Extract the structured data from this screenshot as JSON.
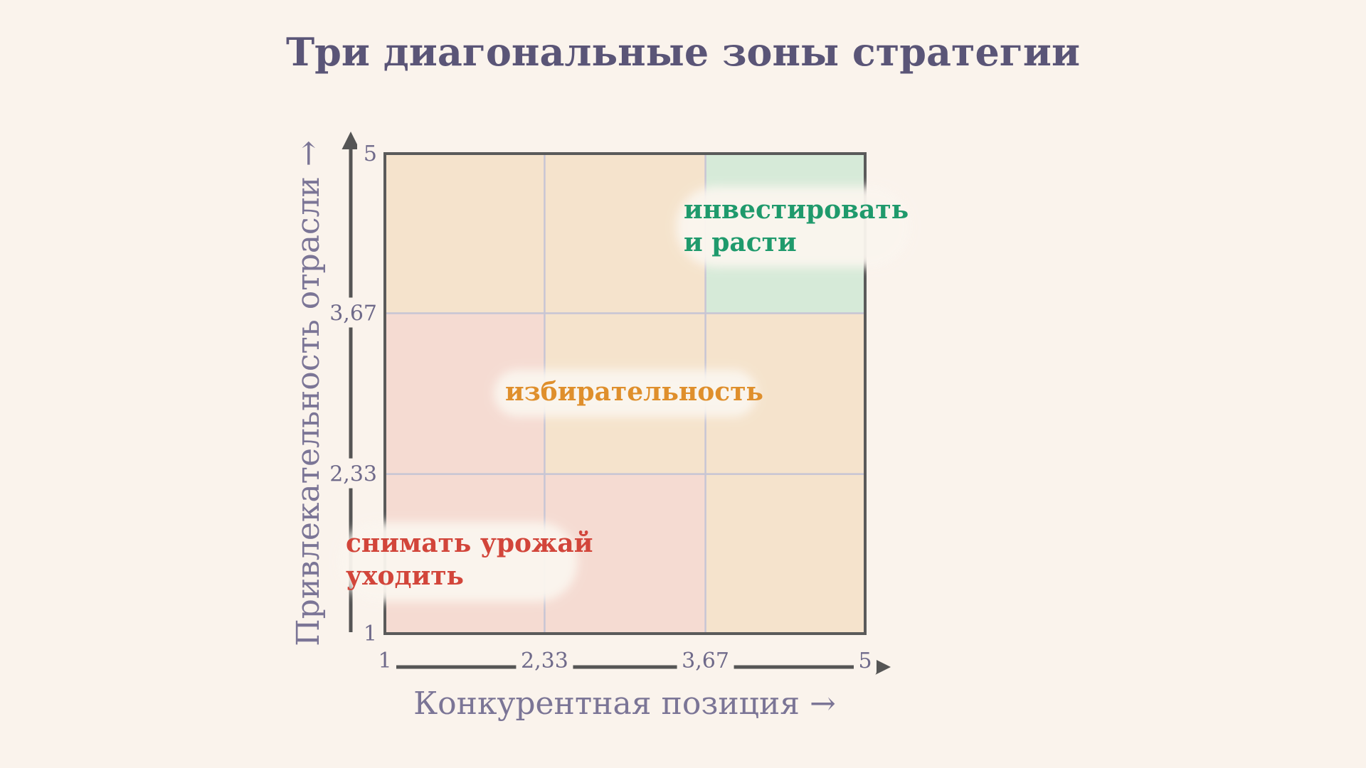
{
  "title": "Три диагональные зоны стратегии",
  "colors": {
    "background": "#faf3ec",
    "title": "#5a5577",
    "zone_invest_fill": "#d6ead8",
    "zone_invest_text": "#1f9a6c",
    "zone_select_fill": "#f5e3cc",
    "zone_select_text": "#df8f2c",
    "zone_harvest_fill": "#f5dbd2",
    "zone_harvest_text": "#d2453a",
    "grid": "#c7c5d4",
    "frame": "#5a5a5a"
  },
  "chart_data": {
    "type": "heatmap",
    "xlabel": "Конкурентная позиция →",
    "ylabel": "Привлекательность отрасли →",
    "x_ticks": [
      "1",
      "2,33",
      "3,67",
      "5"
    ],
    "y_ticks": [
      "1",
      "2,33",
      "3,67",
      "5"
    ],
    "xlim": [
      1,
      5
    ],
    "ylim": [
      1,
      5
    ],
    "boundaries": [
      1,
      2.33,
      3.67,
      5
    ],
    "cells": [
      {
        "col": 1,
        "row": 1,
        "zone": "harvest"
      },
      {
        "col": 2,
        "row": 1,
        "zone": "harvest"
      },
      {
        "col": 3,
        "row": 1,
        "zone": "select"
      },
      {
        "col": 1,
        "row": 2,
        "zone": "harvest"
      },
      {
        "col": 2,
        "row": 2,
        "zone": "select"
      },
      {
        "col": 3,
        "row": 2,
        "zone": "select"
      },
      {
        "col": 1,
        "row": 3,
        "zone": "select"
      },
      {
        "col": 2,
        "row": 3,
        "zone": "select"
      },
      {
        "col": 3,
        "row": 3,
        "zone": "invest"
      }
    ],
    "zones": {
      "invest": {
        "label_lines": [
          "инвестировать",
          "и расти"
        ]
      },
      "select": {
        "label_lines": [
          "избирательность"
        ]
      },
      "harvest": {
        "label_lines": [
          "снимать урожай",
          "уходить"
        ]
      }
    }
  }
}
